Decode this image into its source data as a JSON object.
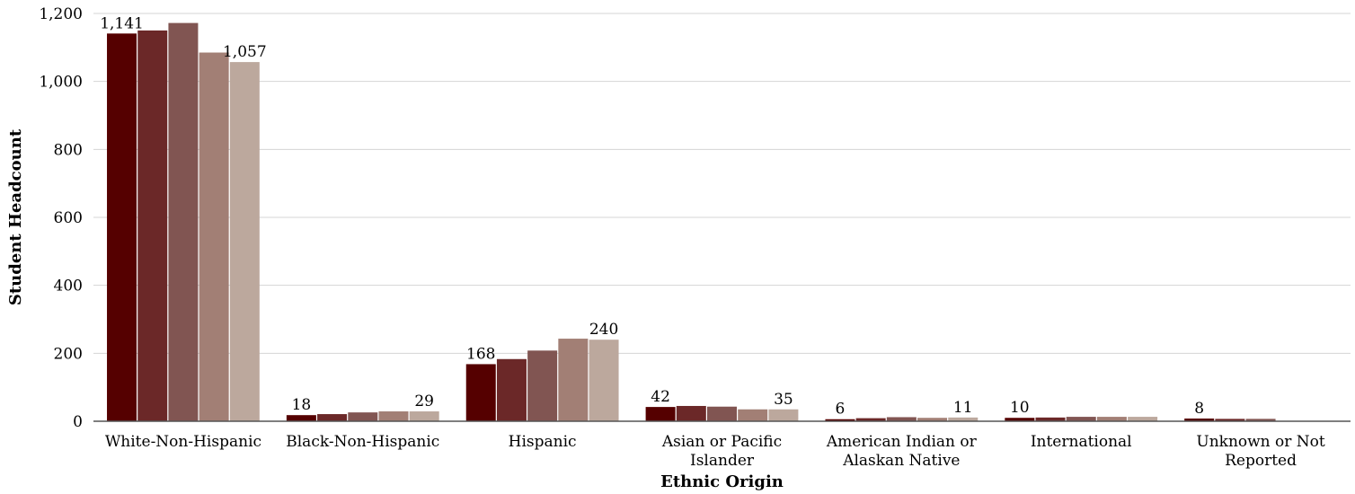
{
  "chart_data": {
    "type": "bar",
    "xlabel": "Ethnic Origin",
    "ylabel": "Student Headcount",
    "ylim": [
      0,
      1200
    ],
    "yticks": [
      0,
      200,
      400,
      600,
      800,
      1000,
      1200
    ],
    "ytick_labels": [
      "0",
      "200",
      "400",
      "600",
      "800",
      "1,000",
      "1,200"
    ],
    "grid": true,
    "legend": "none",
    "categories": [
      [
        "White-Non-Hispanic"
      ],
      [
        "Black-Non-Hispanic"
      ],
      [
        "Hispanic"
      ],
      [
        "Asian or Pacific",
        "Islander"
      ],
      [
        "American Indian or",
        "Alaskan Native"
      ],
      [
        "International"
      ],
      [
        "Unknown or Not",
        "Reported"
      ]
    ],
    "series_colors": [
      "#550000",
      "#6b2828",
      "#815552",
      "#a27f75",
      "#bca89d"
    ],
    "series": [
      {
        "values": [
          1141,
          18,
          168,
          42,
          6,
          10,
          8
        ]
      },
      {
        "values": [
          1150,
          21,
          183,
          45,
          9,
          11,
          7
        ]
      },
      {
        "values": [
          1172,
          26,
          208,
          43,
          12,
          13,
          7
        ]
      },
      {
        "values": [
          1085,
          29,
          243,
          35,
          10,
          13,
          0
        ]
      },
      {
        "values": [
          1057,
          29,
          240,
          35,
          11,
          13,
          0
        ]
      }
    ],
    "data_labels": [
      {
        "category": 0,
        "series": 0,
        "text": "1,141"
      },
      {
        "category": 0,
        "series": 4,
        "text": "1,057"
      },
      {
        "category": 1,
        "series": 0,
        "text": "18"
      },
      {
        "category": 1,
        "series": 4,
        "text": "29"
      },
      {
        "category": 2,
        "series": 0,
        "text": "168"
      },
      {
        "category": 2,
        "series": 4,
        "text": "240"
      },
      {
        "category": 3,
        "series": 0,
        "text": "42"
      },
      {
        "category": 3,
        "series": 4,
        "text": "35"
      },
      {
        "category": 4,
        "series": 0,
        "text": "6"
      },
      {
        "category": 4,
        "series": 4,
        "text": "11"
      },
      {
        "category": 5,
        "series": 0,
        "text": "10"
      },
      {
        "category": 6,
        "series": 0,
        "text": "8"
      }
    ]
  }
}
